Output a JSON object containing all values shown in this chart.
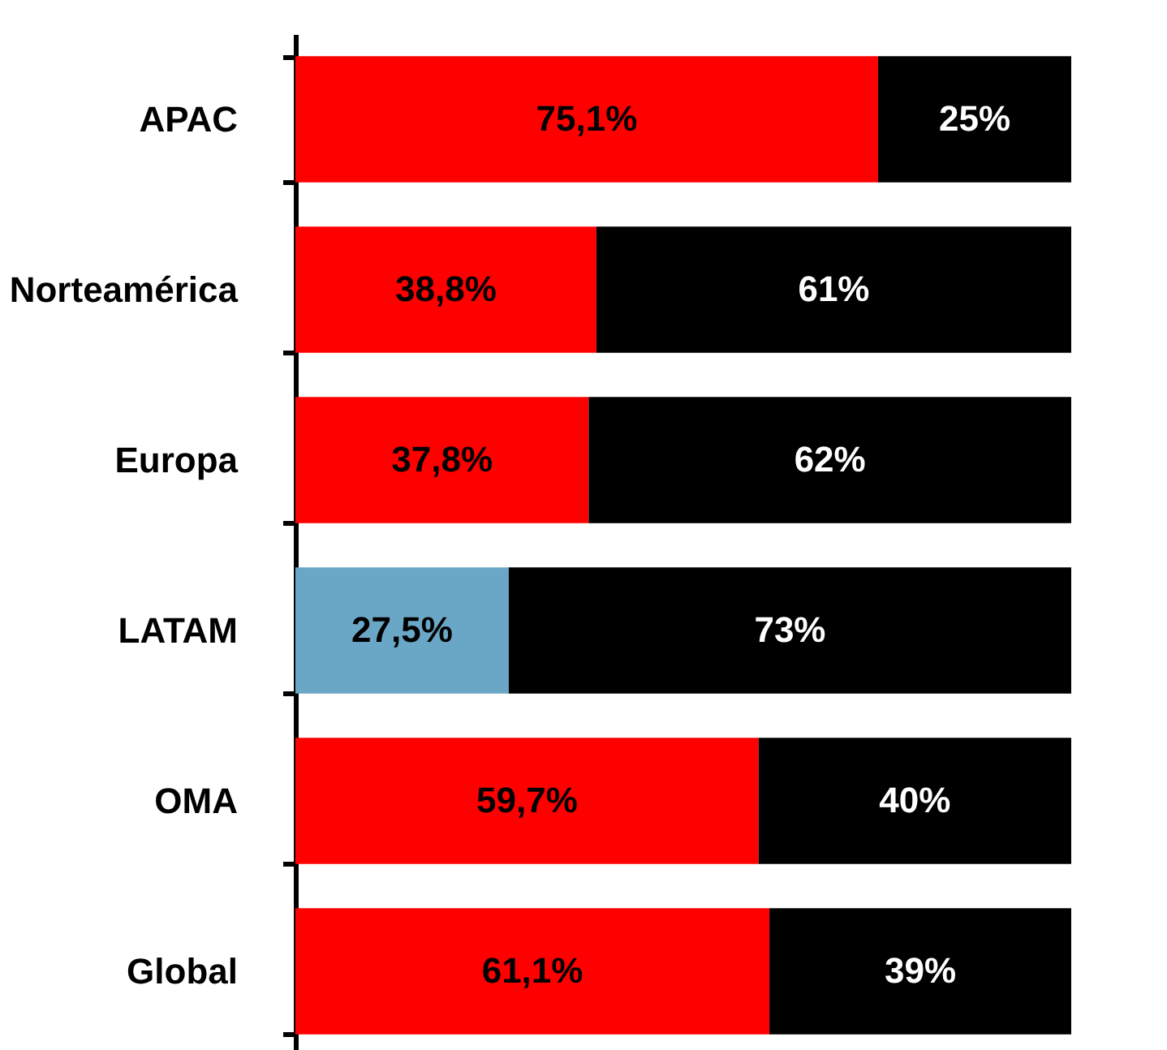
{
  "chart_data": {
    "type": "bar",
    "orientation": "horizontal",
    "stacked": true,
    "categories": [
      "APAC",
      "Norteamérica",
      "Europa",
      "LATAM",
      "OMA",
      "Global"
    ],
    "xlim": [
      0,
      100
    ],
    "tick_labels": "y",
    "grid": false,
    "series": [
      {
        "colors": [
          "#ff0000",
          "#ff0000",
          "#ff0000",
          "#6aa7c6",
          "#ff0000",
          "#ff0000"
        ],
        "values": [
          75.1,
          38.8,
          37.8,
          27.5,
          59.7,
          61.1
        ],
        "value_labels": [
          "75,1%",
          "38,8%",
          "37,8%",
          "27,5%",
          "59,7%",
          "61,1%"
        ]
      },
      {
        "color": "#000000",
        "values": [
          24.9,
          61.2,
          62.2,
          72.5,
          40.3,
          38.9
        ],
        "value_labels": [
          "25%",
          "61%",
          "62%",
          "73%",
          "40%",
          "39%"
        ]
      }
    ]
  }
}
